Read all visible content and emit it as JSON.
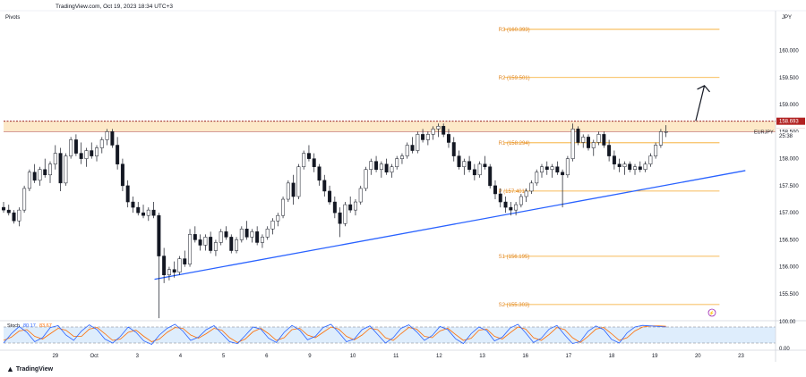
{
  "header": {
    "source": "TradingView.com, Oct 19, 2023 18:34 UTC+3",
    "indicator_label": "Pivots",
    "currency": "JPY",
    "brand": "TradingView"
  },
  "colors": {
    "bg": "#ffffff",
    "bull": "#ffffff",
    "bear": "#131722",
    "pivot_line": "#f5a623",
    "pivot_text": "#e0892a",
    "trendline": "#2962ff",
    "resistance_zone": "#fde9c8",
    "resistance_border": "#8b0000",
    "stoch_k": "#2962ff",
    "stoch_d": "#ff6d00",
    "stoch_band": "#d6e9fb",
    "axis_text": "#131722"
  },
  "chart_data": {
    "type": "candlestick",
    "symbol": "EURJPY",
    "y_axis": {
      "range": [
        155.02,
        160.72
      ],
      "ticks": [
        "160.000",
        "159.500",
        "159.000",
        "158.500",
        "158.000",
        "157.500",
        "157.000",
        "156.500",
        "156.000",
        "155.500"
      ],
      "tick_values": [
        160.0,
        159.5,
        159.0,
        158.5,
        158.0,
        157.5,
        157.0,
        156.5,
        156.0,
        155.5
      ]
    },
    "x_axis": {
      "labels": [
        "29",
        "Oct",
        "3",
        "4",
        "5",
        "6",
        "9",
        "10",
        "11",
        "12",
        "13",
        "16",
        "17",
        "18",
        "19",
        "20",
        "23"
      ],
      "positions": [
        0.4,
        1.3,
        2.3,
        3.3,
        4.3,
        5.3,
        6.3,
        7.3,
        8.3,
        9.3,
        10.3,
        11.3,
        12.3,
        13.3,
        14.3,
        15.3,
        16.3
      ],
      "range": [
        -0.8,
        17.1
      ]
    },
    "price_labels": [
      {
        "text": "158.693",
        "value": 158.693,
        "style": "resistance"
      },
      {
        "text": "158.501",
        "value": 158.501,
        "style": "resistance"
      },
      {
        "text": "158.500",
        "value": 158.5,
        "style": "last"
      },
      {
        "text": "25:38",
        "value": 158.42,
        "style": "timer"
      }
    ],
    "symbol_tag": "EURJPY",
    "pivots": [
      {
        "label": "R3 (160.393)",
        "value": 160.393
      },
      {
        "label": "R2 (159.501)",
        "value": 159.501
      },
      {
        "label": "R1 (158.294)",
        "value": 158.294
      },
      {
        "label": "P (157.401)",
        "value": 157.401
      },
      {
        "label": "S1 (156.195)",
        "value": 156.195
      },
      {
        "label": "S2 (155.303)",
        "value": 155.303
      }
    ],
    "pivot_span": {
      "x_start": 10.8,
      "x_end": 15.8
    },
    "resistance_zone": {
      "top": 158.693,
      "bottom": 158.501,
      "x_start": -0.8
    },
    "trendline": {
      "points": [
        [
          2.7,
          155.77
        ],
        [
          16.4,
          157.78
        ]
      ]
    },
    "arrow": {
      "from": [
        15.25,
        158.7
      ],
      "to": [
        15.45,
        159.35
      ]
    },
    "stochastic": {
      "label": "Stoch",
      "k_value": "80.17",
      "d_value": "83.67",
      "y_ticks": [
        "100.00",
        "0.00"
      ],
      "range": [
        0,
        100
      ],
      "band": [
        20,
        80
      ]
    },
    "candles": [
      [
        -0.8,
        157.1,
        157.2,
        157.0,
        157.05
      ],
      [
        -0.68,
        157.05,
        157.15,
        156.95,
        157.0
      ],
      [
        -0.56,
        157.0,
        157.05,
        156.8,
        156.85
      ],
      [
        -0.44,
        156.85,
        157.1,
        156.75,
        157.05
      ],
      [
        -0.32,
        157.05,
        157.5,
        157.0,
        157.45
      ],
      [
        -0.2,
        157.45,
        157.8,
        157.4,
        157.75
      ],
      [
        -0.08,
        157.75,
        157.9,
        157.55,
        157.6
      ],
      [
        0.04,
        157.6,
        157.85,
        157.5,
        157.8
      ],
      [
        0.16,
        157.8,
        158.0,
        157.65,
        157.7
      ],
      [
        0.28,
        157.7,
        157.95,
        157.55,
        157.9
      ],
      [
        0.4,
        157.9,
        158.25,
        157.8,
        158.1
      ],
      [
        0.52,
        158.1,
        158.2,
        157.4,
        157.55
      ],
      [
        0.64,
        157.55,
        158.1,
        157.5,
        158.05
      ],
      [
        0.76,
        158.05,
        158.4,
        158.0,
        158.35
      ],
      [
        0.88,
        158.35,
        158.45,
        158.05,
        158.1
      ],
      [
        1.0,
        158.1,
        158.3,
        157.9,
        158.0
      ],
      [
        1.12,
        158.0,
        158.2,
        157.85,
        158.15
      ],
      [
        1.24,
        158.15,
        158.3,
        158.0,
        158.05
      ],
      [
        1.36,
        158.05,
        158.25,
        157.95,
        158.2
      ],
      [
        1.48,
        158.2,
        158.4,
        158.1,
        158.35
      ],
      [
        1.6,
        158.35,
        158.55,
        158.25,
        158.5
      ],
      [
        1.72,
        158.5,
        158.55,
        158.2,
        158.25
      ],
      [
        1.84,
        158.25,
        158.4,
        157.8,
        157.9
      ],
      [
        1.96,
        157.9,
        158.0,
        157.4,
        157.5
      ],
      [
        2.08,
        157.5,
        157.6,
        157.1,
        157.2
      ],
      [
        2.2,
        157.2,
        157.3,
        157.0,
        157.1
      ],
      [
        2.32,
        157.1,
        157.2,
        156.95,
        157.0
      ],
      [
        2.44,
        157.0,
        157.15,
        156.9,
        156.95
      ],
      [
        2.56,
        156.95,
        157.1,
        156.85,
        157.05
      ],
      [
        2.68,
        157.05,
        157.2,
        156.9,
        156.95
      ],
      [
        2.8,
        156.95,
        157.0,
        155.05,
        156.2
      ],
      [
        2.92,
        156.2,
        156.35,
        155.7,
        155.85
      ],
      [
        3.04,
        155.85,
        156.0,
        155.75,
        155.95
      ],
      [
        3.16,
        155.95,
        156.1,
        155.8,
        155.9
      ],
      [
        3.28,
        155.9,
        156.2,
        155.85,
        156.15
      ],
      [
        3.4,
        156.15,
        156.3,
        156.0,
        156.05
      ],
      [
        3.52,
        156.05,
        156.7,
        156.0,
        156.6
      ],
      [
        3.64,
        156.6,
        156.75,
        156.45,
        156.5
      ],
      [
        3.76,
        156.5,
        156.6,
        156.3,
        156.4
      ],
      [
        3.88,
        156.4,
        156.6,
        156.3,
        156.55
      ],
      [
        4.0,
        156.55,
        156.65,
        156.25,
        156.3
      ],
      [
        4.12,
        156.3,
        156.5,
        156.2,
        156.45
      ],
      [
        4.24,
        156.45,
        156.7,
        156.4,
        156.65
      ],
      [
        4.36,
        156.65,
        156.75,
        156.5,
        156.55
      ],
      [
        4.48,
        156.55,
        156.6,
        156.25,
        156.3
      ],
      [
        4.6,
        156.3,
        156.55,
        156.25,
        156.5
      ],
      [
        4.72,
        156.5,
        156.75,
        156.45,
        156.7
      ],
      [
        4.84,
        156.7,
        156.85,
        156.5,
        156.55
      ],
      [
        4.96,
        156.55,
        156.7,
        156.45,
        156.65
      ],
      [
        5.08,
        156.65,
        156.75,
        156.4,
        156.45
      ],
      [
        5.2,
        156.45,
        156.6,
        156.35,
        156.55
      ],
      [
        5.32,
        156.55,
        156.75,
        156.5,
        156.7
      ],
      [
        5.44,
        156.7,
        156.9,
        156.6,
        156.85
      ],
      [
        5.56,
        156.85,
        157.0,
        156.75,
        156.95
      ],
      [
        5.68,
        156.95,
        157.3,
        156.9,
        157.25
      ],
      [
        5.8,
        157.25,
        157.6,
        157.2,
        157.55
      ],
      [
        5.92,
        157.55,
        157.7,
        157.15,
        157.3
      ],
      [
        6.04,
        157.3,
        157.9,
        157.25,
        157.85
      ],
      [
        6.16,
        157.85,
        158.15,
        157.8,
        158.1
      ],
      [
        6.28,
        158.1,
        158.25,
        157.95,
        158.0
      ],
      [
        6.4,
        158.0,
        158.1,
        157.75,
        157.85
      ],
      [
        6.52,
        157.85,
        157.9,
        157.5,
        157.6
      ],
      [
        6.64,
        157.6,
        157.7,
        157.3,
        157.4
      ],
      [
        6.76,
        157.4,
        157.5,
        157.15,
        157.2
      ],
      [
        6.88,
        157.2,
        157.3,
        156.9,
        157.0
      ],
      [
        7.0,
        157.0,
        157.1,
        156.55,
        156.8
      ],
      [
        7.12,
        156.8,
        157.2,
        156.75,
        157.15
      ],
      [
        7.24,
        157.15,
        157.3,
        157.0,
        157.05
      ],
      [
        7.36,
        157.05,
        157.25,
        156.95,
        157.2
      ],
      [
        7.48,
        157.2,
        157.5,
        157.15,
        157.45
      ],
      [
        7.6,
        157.45,
        157.85,
        157.4,
        157.8
      ],
      [
        7.72,
        157.8,
        158.0,
        157.7,
        157.95
      ],
      [
        7.84,
        157.95,
        158.05,
        157.75,
        157.8
      ],
      [
        7.96,
        157.8,
        157.95,
        157.65,
        157.9
      ],
      [
        8.08,
        157.9,
        158.0,
        157.7,
        157.75
      ],
      [
        8.2,
        157.75,
        157.9,
        157.65,
        157.85
      ],
      [
        8.32,
        157.85,
        158.05,
        157.8,
        158.0
      ],
      [
        8.44,
        158.0,
        158.1,
        157.9,
        158.05
      ],
      [
        8.56,
        158.05,
        158.3,
        158.0,
        158.25
      ],
      [
        8.68,
        158.25,
        158.4,
        158.1,
        158.15
      ],
      [
        8.8,
        158.15,
        158.5,
        158.1,
        158.45
      ],
      [
        8.92,
        158.45,
        158.55,
        158.3,
        158.35
      ],
      [
        9.04,
        158.35,
        158.5,
        158.25,
        158.45
      ],
      [
        9.16,
        158.45,
        158.6,
        158.35,
        158.55
      ],
      [
        9.28,
        158.55,
        158.65,
        158.4,
        158.6
      ],
      [
        9.4,
        158.6,
        158.65,
        158.4,
        158.45
      ],
      [
        9.52,
        158.45,
        158.55,
        158.2,
        158.3
      ],
      [
        9.64,
        158.3,
        158.4,
        157.95,
        158.05
      ],
      [
        9.76,
        158.05,
        158.15,
        157.8,
        157.85
      ],
      [
        9.88,
        157.85,
        158.0,
        157.7,
        157.95
      ],
      [
        10.0,
        157.95,
        158.05,
        157.75,
        157.8
      ],
      [
        10.12,
        157.8,
        157.9,
        157.6,
        157.7
      ],
      [
        10.24,
        157.7,
        157.95,
        157.65,
        157.9
      ],
      [
        10.36,
        157.9,
        158.05,
        157.8,
        157.85
      ],
      [
        10.48,
        157.85,
        157.9,
        157.45,
        157.5
      ],
      [
        10.6,
        157.5,
        157.6,
        157.25,
        157.35
      ],
      [
        10.72,
        157.35,
        157.45,
        157.1,
        157.2
      ],
      [
        10.84,
        157.2,
        157.3,
        157.0,
        157.1
      ],
      [
        10.96,
        157.1,
        157.2,
        156.95,
        157.05
      ],
      [
        11.08,
        157.05,
        157.2,
        156.95,
        157.15
      ],
      [
        11.2,
        157.15,
        157.35,
        157.1,
        157.3
      ],
      [
        11.32,
        157.3,
        157.45,
        157.2,
        157.4
      ],
      [
        11.44,
        157.4,
        157.6,
        157.35,
        157.55
      ],
      [
        11.56,
        157.55,
        157.8,
        157.5,
        157.75
      ],
      [
        11.68,
        157.75,
        157.9,
        157.65,
        157.85
      ],
      [
        11.8,
        157.85,
        157.95,
        157.7,
        157.8
      ],
      [
        11.92,
        157.8,
        157.9,
        157.65,
        157.85
      ],
      [
        12.04,
        157.85,
        157.95,
        157.7,
        157.75
      ],
      [
        12.16,
        157.75,
        157.8,
        157.1,
        157.7
      ],
      [
        12.28,
        157.7,
        158.05,
        157.65,
        158.0
      ],
      [
        12.4,
        158.0,
        158.65,
        157.95,
        158.55
      ],
      [
        12.52,
        158.55,
        158.6,
        158.25,
        158.3
      ],
      [
        12.64,
        158.3,
        158.45,
        158.2,
        158.4
      ],
      [
        12.76,
        158.4,
        158.45,
        158.15,
        158.2
      ],
      [
        12.88,
        158.2,
        158.35,
        158.05,
        158.3
      ],
      [
        13.0,
        158.3,
        158.5,
        158.25,
        158.45
      ],
      [
        13.12,
        158.45,
        158.5,
        158.2,
        158.25
      ],
      [
        13.24,
        158.25,
        158.35,
        157.95,
        158.05
      ],
      [
        13.36,
        158.05,
        158.15,
        157.8,
        157.9
      ],
      [
        13.48,
        157.9,
        158.0,
        157.75,
        157.85
      ],
      [
        13.6,
        157.85,
        157.95,
        157.7,
        157.9
      ],
      [
        13.72,
        157.9,
        157.95,
        157.75,
        157.8
      ],
      [
        13.84,
        157.8,
        157.9,
        157.7,
        157.85
      ],
      [
        13.96,
        157.85,
        157.95,
        157.75,
        157.8
      ],
      [
        14.08,
        157.8,
        157.95,
        157.75,
        157.9
      ],
      [
        14.2,
        157.9,
        158.1,
        157.85,
        158.05
      ],
      [
        14.32,
        158.05,
        158.3,
        158.0,
        158.25
      ],
      [
        14.44,
        158.25,
        158.55,
        158.2,
        158.5
      ],
      [
        14.56,
        158.5,
        158.62,
        158.4,
        158.5
      ]
    ],
    "stoch_k": [
      20,
      55,
      82,
      60,
      25,
      40,
      78,
      85,
      50,
      30,
      65,
      88,
      70,
      35,
      20,
      45,
      80,
      60,
      28,
      15,
      50,
      75,
      90,
      65,
      30,
      42,
      70,
      85,
      55,
      25,
      18,
      48,
      80,
      72,
      38,
      22,
      60,
      86,
      68,
      32,
      45,
      78,
      90,
      60,
      25,
      35,
      70,
      84,
      52,
      20,
      40,
      75,
      88,
      62,
      30,
      48,
      82,
      70,
      36,
      18,
      55,
      80,
      66,
      28,
      42,
      76,
      90,
      58,
      22,
      38,
      72,
      86,
      50,
      18,
      26,
      64,
      84,
      70,
      34,
      20,
      58,
      80,
      86,
      84,
      82,
      80
    ],
    "stoch_d": [
      30,
      42,
      65,
      70,
      45,
      35,
      55,
      75,
      68,
      45,
      45,
      72,
      78,
      55,
      30,
      35,
      60,
      68,
      45,
      25,
      35,
      60,
      78,
      75,
      50,
      38,
      55,
      75,
      68,
      40,
      22,
      35,
      62,
      75,
      55,
      30,
      40,
      70,
      75,
      50,
      40,
      60,
      80,
      72,
      45,
      32,
      50,
      75,
      70,
      40,
      30,
      55,
      78,
      72,
      45,
      40,
      65,
      75,
      52,
      30,
      38,
      68,
      72,
      45,
      35,
      58,
      80,
      72,
      40,
      30,
      52,
      78,
      70,
      40,
      22,
      45,
      72,
      78,
      55,
      30,
      40,
      65,
      80,
      84,
      84,
      83
    ]
  }
}
